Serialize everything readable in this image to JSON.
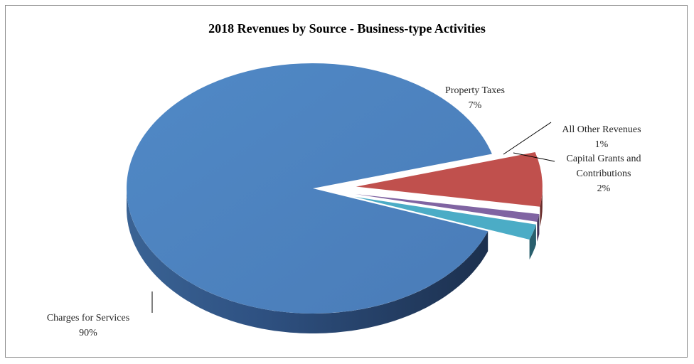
{
  "chart_data": {
    "type": "pie",
    "title": "2018 Revenues by Source - Business-type Activities",
    "slices": [
      {
        "label_lines": [
          "Charges for Services"
        ],
        "percent_label": "90%",
        "value": 90,
        "color": "#4f81bd",
        "exploded": false
      },
      {
        "label_lines": [
          "Property Taxes"
        ],
        "percent_label": "7%",
        "value": 7,
        "color": "#c0504d",
        "exploded": true
      },
      {
        "label_lines": [
          "All Other Revenues"
        ],
        "percent_label": "1%",
        "value": 1,
        "color": "#8064a2",
        "exploded": true
      },
      {
        "label_lines": [
          "Capital Grants and",
          "Contributions"
        ],
        "percent_label": "2%",
        "value": 2,
        "color": "#4bacc6",
        "exploded": true
      }
    ]
  }
}
